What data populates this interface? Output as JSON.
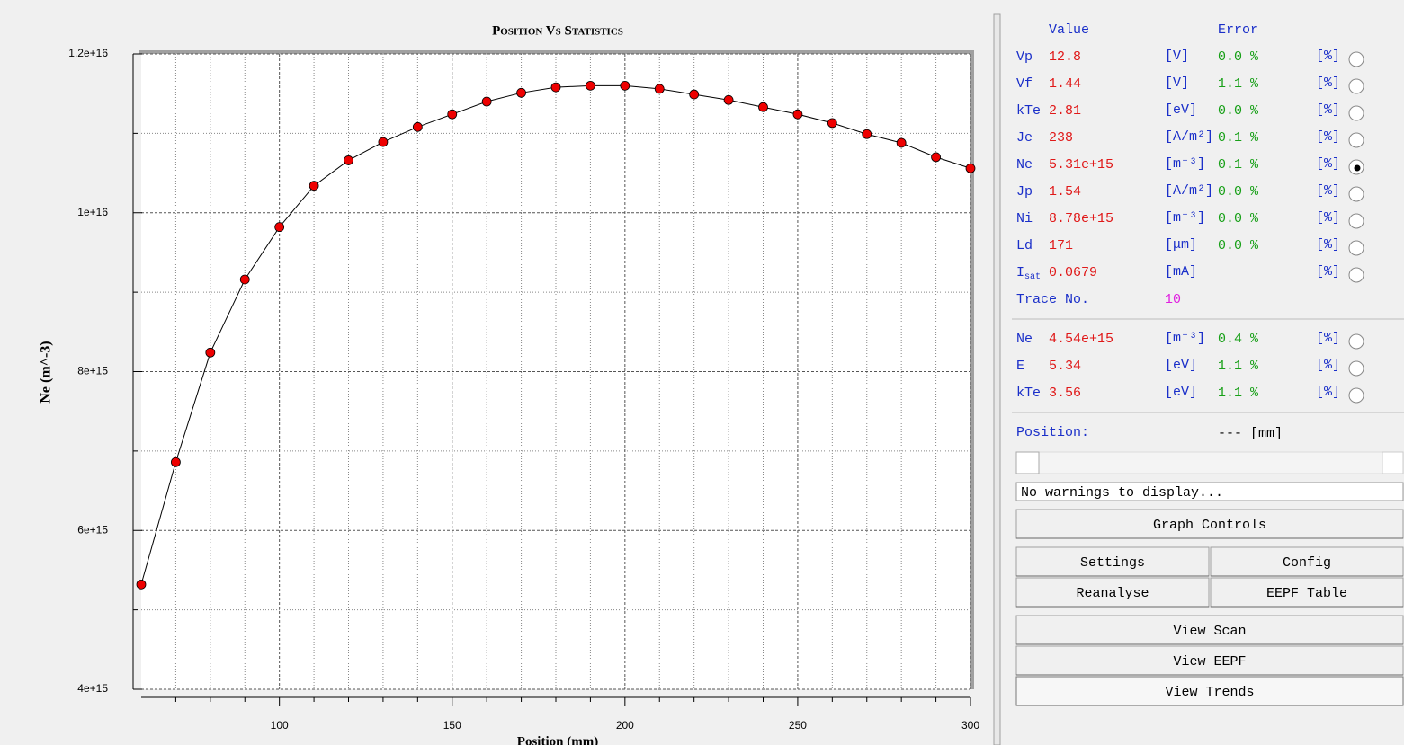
{
  "chart_data": {
    "type": "line",
    "title": "Position Vs Statistics",
    "xlabel": "Position (mm)",
    "ylabel": "Ne (m^-3)",
    "x": [
      60,
      70,
      80,
      90,
      100,
      110,
      120,
      130,
      140,
      150,
      160,
      170,
      180,
      190,
      200,
      210,
      220,
      230,
      240,
      250,
      260,
      270,
      280,
      290,
      300
    ],
    "values": [
      5320000000000000.0,
      6860000000000000.0,
      8240000000000000.0,
      9160000000000000.0,
      9820000000000000.0,
      1.034e+16,
      1.066e+16,
      1.089e+16,
      1.108e+16,
      1.124e+16,
      1.14e+16,
      1.151e+16,
      1.158e+16,
      1.16e+16,
      1.16e+16,
      1.156e+16,
      1.149e+16,
      1.142e+16,
      1.133e+16,
      1.124e+16,
      1.113e+16,
      1.099e+16,
      1.088e+16,
      1.07e+16,
      1.056e+16
    ],
    "color": "#000000",
    "marker_color": "#ee0000",
    "xlim": [
      60,
      300
    ],
    "xticks": [
      100,
      150,
      200,
      250,
      300
    ],
    "xticks_minor": [
      70,
      80,
      90,
      110,
      120,
      130,
      140,
      160,
      170,
      180,
      190,
      210,
      220,
      230,
      240,
      260,
      270,
      280,
      290
    ],
    "ylim": [
      4000000000000000.0,
      1.2e+16
    ],
    "yticks": [
      {
        "value": 4000000000000000.0,
        "label": "4e+15"
      },
      {
        "value": 6000000000000000.0,
        "label": "6e+15"
      },
      {
        "value": 8000000000000000.0,
        "label": "8e+15"
      },
      {
        "value": 1e+16,
        "label": "1e+16"
      },
      {
        "value": 1.2e+16,
        "label": "1.2e+16"
      }
    ],
    "yticks_minor": [
      5000000000000000.0,
      7000000000000000.0,
      9000000000000000.0,
      1.1e+16
    ],
    "grid": true
  },
  "panel": {
    "headers": [
      "Value",
      "Error"
    ],
    "rows": [
      {
        "name": "Vp",
        "value": "12.8",
        "unit": "[V]",
        "error": "0.0 %",
        "pct": "[%]"
      },
      {
        "name": "Vf",
        "value": "1.44",
        "unit": "[V]",
        "error": "1.1 %",
        "pct": "[%]"
      },
      {
        "name": "kTe",
        "value": "2.81",
        "unit": "[eV]",
        "error": "0.0 %",
        "pct": "[%]"
      },
      {
        "name": "Je",
        "value": "238",
        "unit": "[A/m²]",
        "error": "0.1 %",
        "pct": "[%]"
      },
      {
        "name": "Ne",
        "value": "5.31e+15",
        "unit": "[m⁻³]",
        "error": "0.1 %",
        "pct": "[%]"
      },
      {
        "name": "Jp",
        "value": "1.54",
        "unit": "[A/m²]",
        "error": "0.0 %",
        "pct": "[%]"
      },
      {
        "name": "Ni",
        "value": "8.78e+15",
        "unit": "[m⁻³]",
        "error": "0.0 %",
        "pct": "[%]"
      },
      {
        "name": "Ld",
        "value": "171",
        "unit": "[μm]",
        "error": "0.0 %",
        "pct": "[%]"
      },
      {
        "name": "I",
        "sub": "sat",
        "value": "0.0679",
        "unit": "[mA]",
        "pct": "[%]"
      }
    ],
    "trace": {
      "name": "Trace No.",
      "value": "10"
    },
    "rows2": [
      {
        "name": "Ne",
        "value": "4.54e+15",
        "unit": "[m⁻³]",
        "error": "0.4 %",
        "pct": "[%]"
      },
      {
        "name": "E",
        "value": "5.34",
        "unit": "[eV]",
        "error": "1.1 %",
        "pct": "[%]"
      },
      {
        "name": "kTe",
        "value": "3.56",
        "unit": "[eV]",
        "error": "1.1 %",
        "pct": "[%]"
      }
    ],
    "selected": 4,
    "position": {
      "label": "Position:",
      "value": "--- [mm]"
    },
    "warning": "No warnings to display...",
    "buttons": {
      "graph": "Graph Controls",
      "settings": "Settings",
      "config": "Config",
      "reanalyse": "Reanalyse",
      "eepf_table": "EEPF Table",
      "scan": "View Scan",
      "eepf": "View EEPF",
      "trends": "View Trends"
    }
  }
}
